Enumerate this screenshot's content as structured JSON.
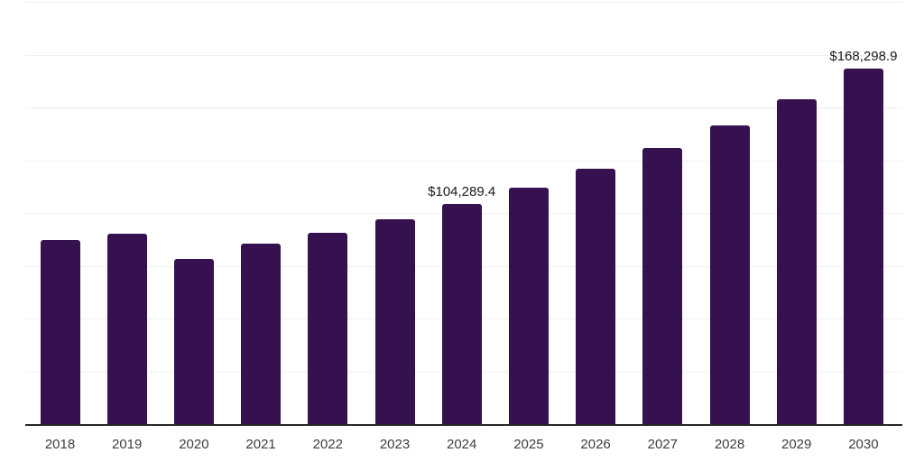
{
  "chart_data": {
    "type": "bar",
    "categories": [
      "2018",
      "2019",
      "2020",
      "2021",
      "2022",
      "2023",
      "2024",
      "2025",
      "2026",
      "2027",
      "2028",
      "2029",
      "2030"
    ],
    "values": [
      87300,
      90200,
      78300,
      85500,
      90800,
      97100,
      104289.4,
      111800,
      121000,
      130800,
      141400,
      153900,
      168298.9
    ],
    "title": "",
    "xlabel": "",
    "ylabel": "",
    "ylim": [
      0,
      200000
    ],
    "gridline_interval": 25000,
    "grid": true,
    "legend": "none",
    "y_axis_tick_labels_visible": false,
    "bar_color": "#36114F",
    "axis_line_color": "#262626",
    "gridline_color": "#f0f0f0",
    "label_color": "#1a1a1a",
    "tick_label_color": "#3d3d3d",
    "annotations": [
      {
        "category": "2024",
        "text": "$104,289.4"
      },
      {
        "category": "2030",
        "text": "$168,298.9"
      }
    ]
  }
}
